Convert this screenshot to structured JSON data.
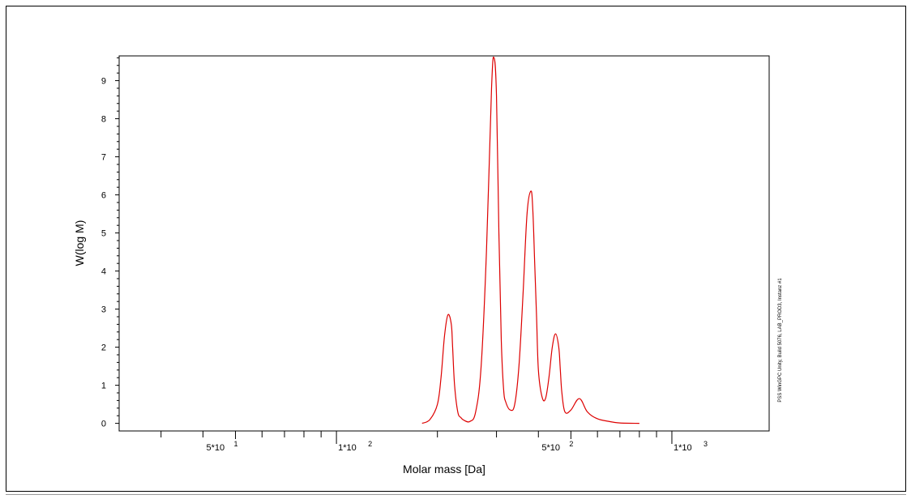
{
  "chart_data": {
    "type": "line",
    "xlabel": "Molar mass [Da]",
    "ylabel": "W(log M)",
    "x_scale": "log",
    "xlim": [
      22.5,
      1950
    ],
    "ylim": [
      -0.2,
      9.65
    ],
    "y_ticks": [
      "0",
      "1",
      "2",
      "3",
      "4",
      "5",
      "6",
      "7",
      "8",
      "9"
    ],
    "x_tick_labels": [
      {
        "base": "5*10",
        "exp": "1",
        "value": 50
      },
      {
        "base": "1*10",
        "exp": "2",
        "value": 100
      },
      {
        "base": "5*10",
        "exp": "2",
        "value": 500
      },
      {
        "base": "1*10",
        "exp": "3",
        "value": 1000
      }
    ],
    "grid": false,
    "line_color": "#dd0000",
    "series": [
      {
        "x": [
          180,
          190,
          200,
          205,
          210,
          215,
          220,
          222,
          225,
          230,
          235,
          240,
          250,
          260,
          270,
          280,
          290,
          295,
          300,
          305,
          310,
          315,
          320,
          330,
          340,
          350,
          360,
          370,
          380,
          385,
          390,
          395,
          400,
          410,
          420,
          430,
          440,
          450,
          460,
          465,
          470,
          480,
          500,
          530,
          560,
          600,
          650,
          700,
          800
        ],
        "y": [
          0.0,
          0.1,
          0.5,
          1.2,
          2.3,
          2.85,
          2.6,
          2.0,
          1.0,
          0.3,
          0.15,
          0.08,
          0.05,
          0.3,
          1.5,
          4.5,
          8.8,
          9.6,
          8.6,
          5.0,
          2.2,
          0.9,
          0.55,
          0.35,
          0.5,
          1.5,
          3.4,
          5.5,
          6.1,
          5.6,
          4.2,
          2.8,
          1.4,
          0.7,
          0.65,
          1.2,
          2.0,
          2.35,
          2.0,
          1.4,
          0.8,
          0.3,
          0.35,
          0.65,
          0.3,
          0.12,
          0.05,
          0.01,
          0.0
        ]
      }
    ],
    "annotation": "PSS WinGPC Unity, Build 5076, LAB_PROD3, Instanz #1"
  }
}
